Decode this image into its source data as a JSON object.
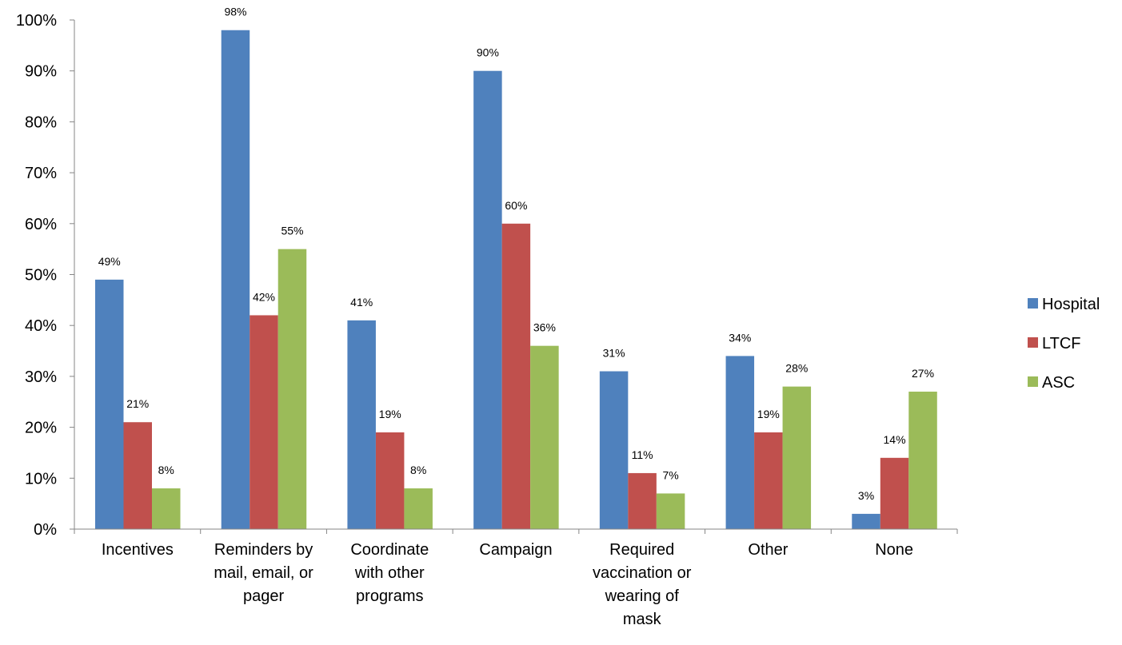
{
  "chart_data": {
    "type": "bar",
    "title": "",
    "xlabel": "",
    "ylabel": "",
    "ylim": [
      0,
      100
    ],
    "yticks": [
      "0%",
      "10%",
      "20%",
      "30%",
      "40%",
      "50%",
      "60%",
      "70%",
      "80%",
      "90%",
      "100%"
    ],
    "categories": [
      [
        "Incentives"
      ],
      [
        "Reminders by",
        "mail, email, or",
        "pager"
      ],
      [
        "Coordinate",
        "with other",
        "programs"
      ],
      [
        "Campaign"
      ],
      [
        "Required",
        "vaccination or",
        "wearing of",
        "mask"
      ],
      [
        "Other"
      ],
      [
        "None"
      ]
    ],
    "series": [
      {
        "name": "Hospital",
        "color": "#4F81BD",
        "values": [
          49,
          98,
          41,
          90,
          31,
          34,
          3
        ],
        "labels": [
          "49%",
          "98%",
          "41%",
          "90%",
          "31%",
          "34%",
          "3%"
        ]
      },
      {
        "name": "LTCF",
        "color": "#C0504D",
        "values": [
          21,
          42,
          19,
          60,
          11,
          19,
          14
        ],
        "labels": [
          "21%",
          "42%",
          "19%",
          "60%",
          "11%",
          "19%",
          "14%"
        ]
      },
      {
        "name": "ASC",
        "color": "#9BBB59",
        "values": [
          8,
          55,
          8,
          36,
          7,
          28,
          27
        ],
        "labels": [
          "8%",
          "55%",
          "8%",
          "36%",
          "7%",
          "28%",
          "27%"
        ]
      }
    ],
    "grid": false,
    "legend_position": "right"
  }
}
